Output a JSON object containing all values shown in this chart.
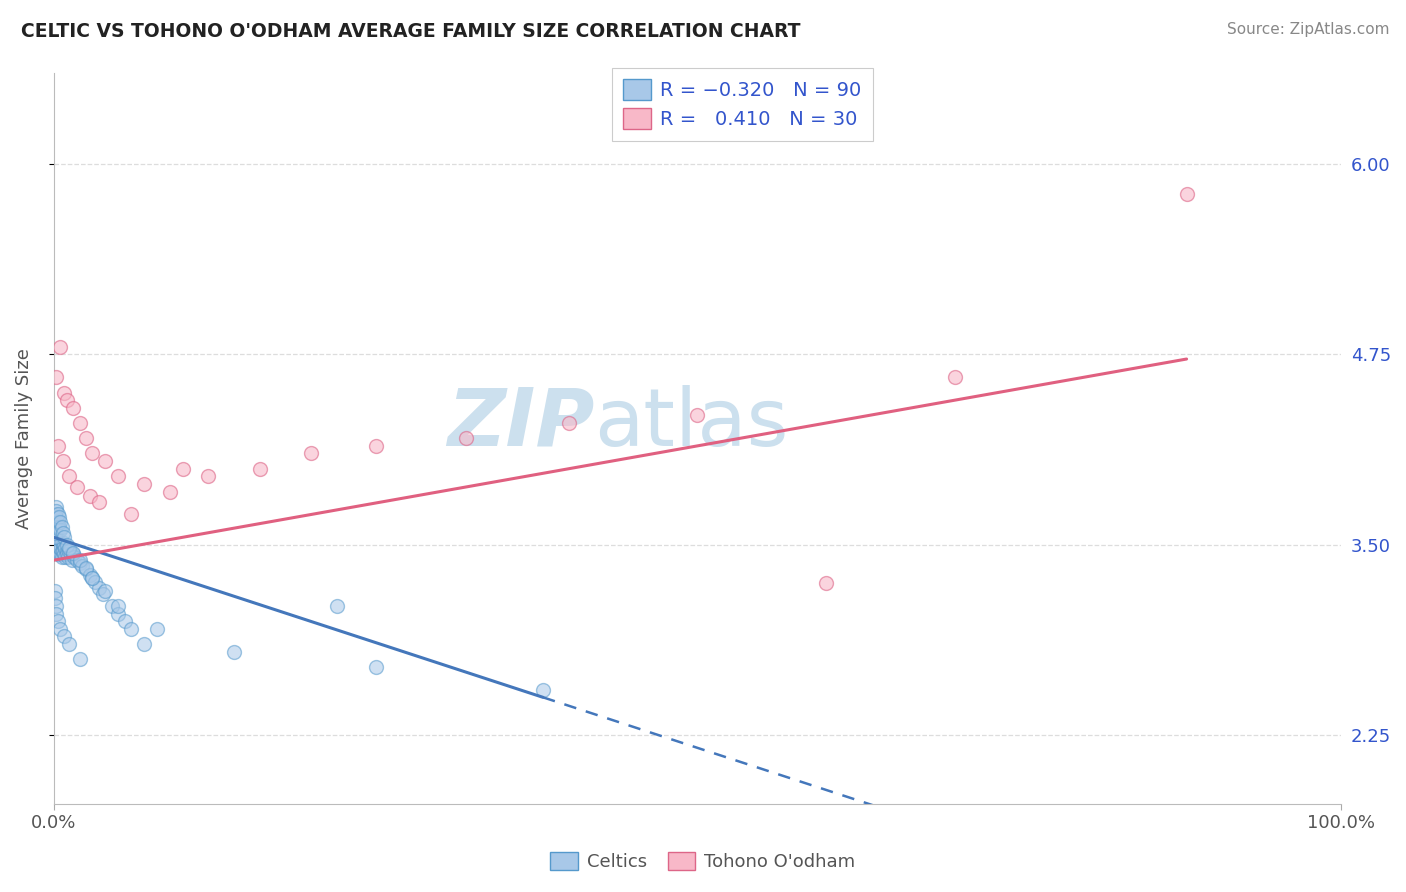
{
  "title": "CELTIC VS TOHONO O'ODHAM AVERAGE FAMILY SIZE CORRELATION CHART",
  "source": "Source: ZipAtlas.com",
  "ylabel": "Average Family Size",
  "xlim": [
    0.0,
    100.0
  ],
  "ylim": [
    1.8,
    6.6
  ],
  "yticks_right": [
    2.25,
    3.5,
    4.75,
    6.0
  ],
  "color_blue": "#a8c8e8",
  "color_blue_edge": "#5599cc",
  "color_blue_line": "#4477bb",
  "color_pink": "#f8b8c8",
  "color_pink_edge": "#dd6688",
  "color_pink_line": "#e06080",
  "color_title": "#222222",
  "color_axis_label": "#555555",
  "color_source": "#888888",
  "color_rn_label": "#3355cc",
  "watermark_color": "#cce0ee",
  "grid_color": "#dddddd",
  "background": "#ffffff",
  "celtics_x": [
    0.1,
    0.1,
    0.1,
    0.1,
    0.1,
    0.2,
    0.2,
    0.2,
    0.2,
    0.3,
    0.3,
    0.3,
    0.3,
    0.4,
    0.4,
    0.4,
    0.5,
    0.5,
    0.5,
    0.6,
    0.6,
    0.6,
    0.7,
    0.7,
    0.8,
    0.8,
    0.9,
    0.9,
    1.0,
    1.0,
    1.1,
    1.2,
    1.3,
    1.4,
    1.5,
    1.6,
    1.8,
    2.0,
    2.2,
    2.5,
    2.8,
    3.0,
    3.2,
    3.5,
    3.8,
    4.5,
    5.0,
    5.5,
    6.0,
    7.0,
    0.1,
    0.1,
    0.1,
    0.1,
    0.1,
    0.1,
    0.2,
    0.2,
    0.2,
    0.3,
    0.3,
    0.4,
    0.4,
    0.5,
    0.5,
    0.6,
    0.7,
    0.8,
    1.0,
    1.2,
    1.5,
    2.0,
    2.5,
    3.0,
    4.0,
    5.0,
    8.0,
    14.0,
    25.0,
    38.0,
    0.1,
    0.1,
    0.2,
    0.2,
    0.3,
    0.5,
    0.8,
    1.2,
    2.0,
    22.0
  ],
  "celtics_y": [
    3.5,
    3.55,
    3.45,
    3.52,
    3.48,
    3.5,
    3.45,
    3.55,
    3.48,
    3.52,
    3.46,
    3.5,
    3.44,
    3.48,
    3.52,
    3.46,
    3.5,
    3.44,
    3.48,
    3.52,
    3.46,
    3.42,
    3.5,
    3.46,
    3.5,
    3.44,
    3.48,
    3.42,
    3.46,
    3.44,
    3.42,
    3.46,
    3.44,
    3.4,
    3.44,
    3.42,
    3.4,
    3.38,
    3.36,
    3.34,
    3.3,
    3.28,
    3.26,
    3.22,
    3.18,
    3.1,
    3.05,
    3.0,
    2.95,
    2.85,
    3.6,
    3.65,
    3.55,
    3.62,
    3.58,
    3.7,
    3.75,
    3.68,
    3.72,
    3.65,
    3.7,
    3.62,
    3.68,
    3.6,
    3.65,
    3.62,
    3.58,
    3.55,
    3.5,
    3.48,
    3.45,
    3.4,
    3.35,
    3.28,
    3.2,
    3.1,
    2.95,
    2.8,
    2.7,
    2.55,
    3.2,
    3.15,
    3.1,
    3.05,
    3.0,
    2.95,
    2.9,
    2.85,
    2.75,
    3.1
  ],
  "tohono_x": [
    0.2,
    0.5,
    0.8,
    1.0,
    1.5,
    2.0,
    2.5,
    3.0,
    4.0,
    5.0,
    7.0,
    9.0,
    12.0,
    16.0,
    20.0,
    25.0,
    32.0,
    40.0,
    50.0,
    60.0,
    0.3,
    0.7,
    1.2,
    1.8,
    2.8,
    3.5,
    6.0,
    10.0,
    70.0,
    88.0
  ],
  "tohono_y": [
    4.6,
    4.8,
    4.5,
    4.45,
    4.4,
    4.3,
    4.2,
    4.1,
    4.05,
    3.95,
    3.9,
    3.85,
    3.95,
    4.0,
    4.1,
    4.15,
    4.2,
    4.3,
    4.35,
    3.25,
    4.15,
    4.05,
    3.95,
    3.88,
    3.82,
    3.78,
    3.7,
    4.0,
    4.6,
    5.8
  ],
  "celtics_solid_end": 38.0,
  "blue_line_x0": 0.0,
  "blue_line_y0": 3.55,
  "blue_line_x1": 38.0,
  "blue_line_y1": 2.5,
  "pink_line_x0": 0.0,
  "pink_line_y0": 3.4,
  "pink_line_x1": 88.0,
  "pink_line_y1": 4.72
}
